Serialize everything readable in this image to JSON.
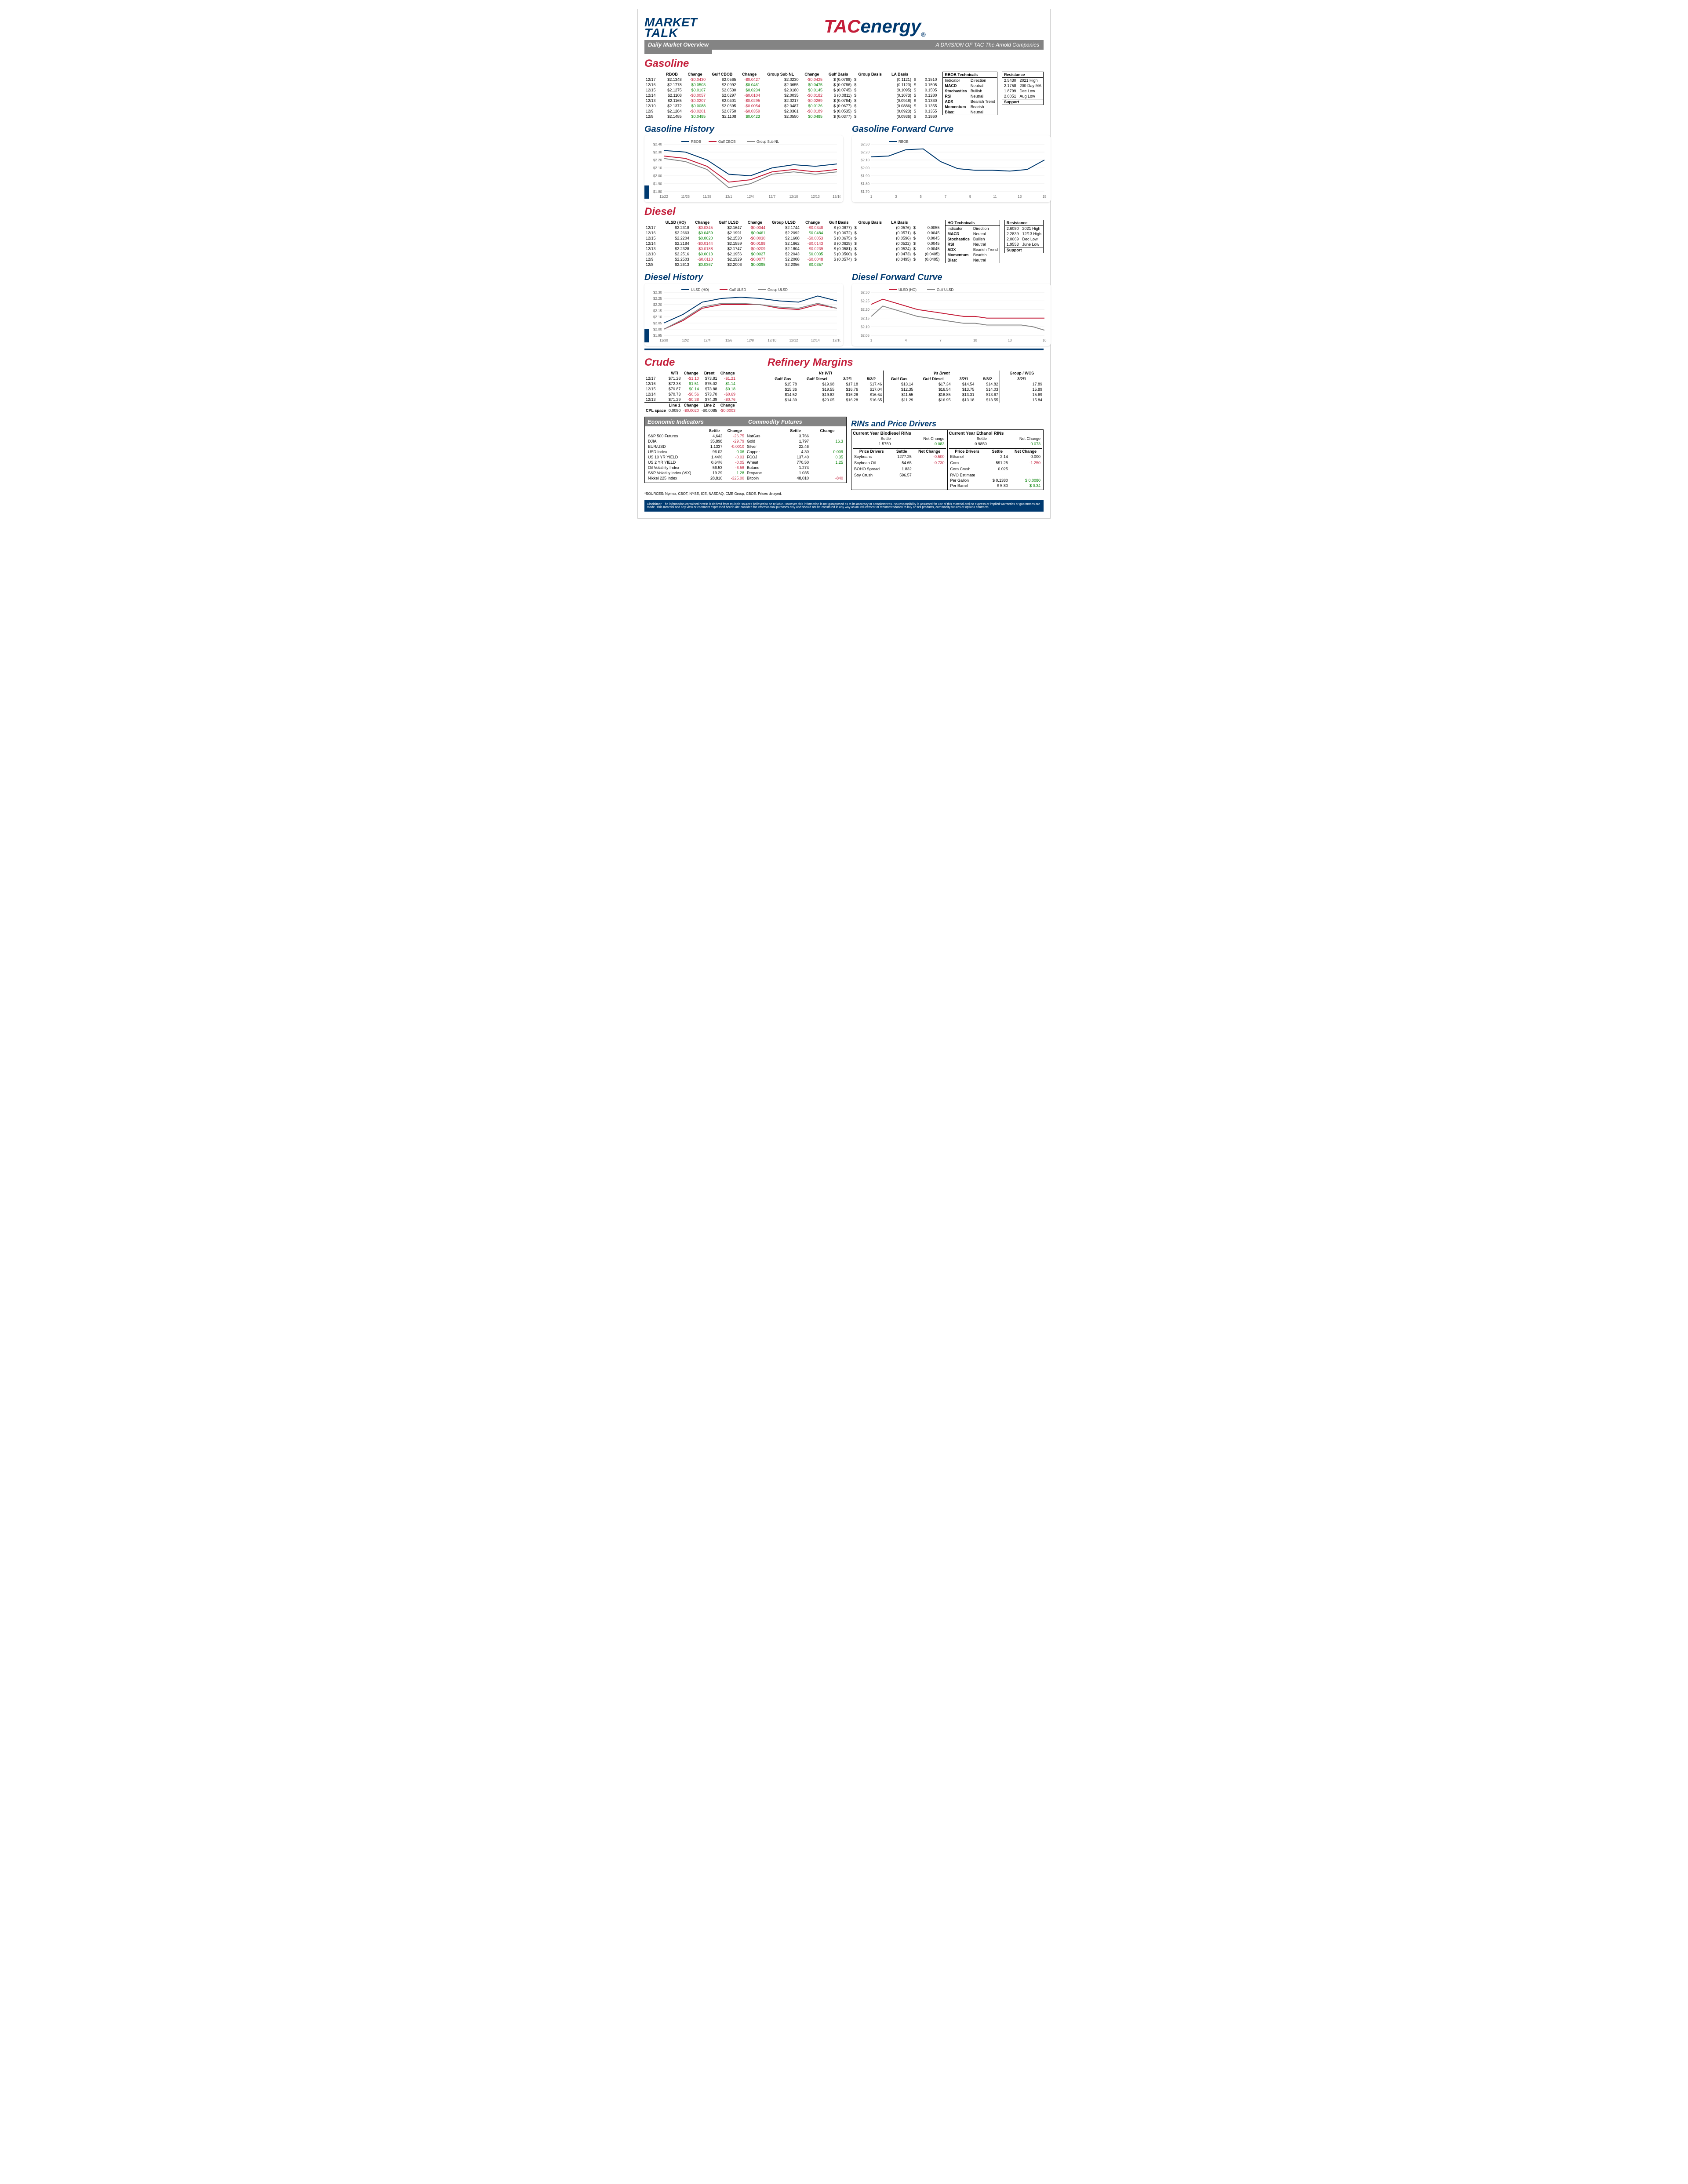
{
  "header": {
    "title1": "MARKET",
    "title2": "TALK",
    "subtitle": "Daily Market Overview",
    "brand_tac": "TAC",
    "brand_energy": "energy",
    "division": "A DIVISION OF TAC The Arnold Companies"
  },
  "gasoline": {
    "title": "Gasoline",
    "cols": [
      "",
      "RBOB",
      "Change",
      "Gulf CBOB",
      "Change",
      "Group Sub NL",
      "Change",
      "Gulf Basis",
      "Group Basis",
      "LA Basis"
    ],
    "rows": [
      [
        "12/17",
        "$2.1348",
        "-$0.0430",
        "$2.0565",
        "-$0.0427",
        "$2.0230",
        "-$0.0425",
        "$ (0.0788)",
        "$",
        "(0.1121)",
        "$",
        "0.1510"
      ],
      [
        "12/16",
        "$2.1778",
        "$0.0503",
        "$2.0992",
        "$0.0461",
        "$2.0655",
        "$0.0475",
        "$ (0.0786)",
        "$",
        "(0.1123)",
        "$",
        "0.1505"
      ],
      [
        "12/15",
        "$2.1275",
        "$0.0167",
        "$2.0530",
        "$0.0234",
        "$2.0180",
        "$0.0145",
        "$ (0.0745)",
        "$",
        "(0.1095)",
        "$",
        "0.1505"
      ],
      [
        "12/14",
        "$2.1108",
        "-$0.0057",
        "$2.0297",
        "-$0.0104",
        "$2.0035",
        "-$0.0182",
        "$ (0.0811)",
        "$",
        "(0.1073)",
        "$",
        "0.1280"
      ],
      [
        "12/13",
        "$2.1165",
        "-$0.0207",
        "$2.0401",
        "-$0.0295",
        "$2.0217",
        "-$0.0269",
        "$ (0.0764)",
        "$",
        "(0.0948)",
        "$",
        "0.1330"
      ],
      [
        "12/10",
        "$2.1372",
        "$0.0088",
        "$2.0695",
        "-$0.0054",
        "$2.0487",
        "$0.0126",
        "$ (0.0677)",
        "$",
        "(0.0886)",
        "$",
        "0.1355"
      ],
      [
        "12/9",
        "$2.1284",
        "-$0.0201",
        "$2.0750",
        "-$0.0359",
        "$2.0361",
        "-$0.0189",
        "$ (0.0535)",
        "$",
        "(0.0923)",
        "$",
        "0.1355"
      ],
      [
        "12/8",
        "$2.1485",
        "$0.0485",
        "$2.1108",
        "$0.0423",
        "$2.0550",
        "$0.0485",
        "$ (0.0377)",
        "$",
        "(0.0936)",
        "$",
        "0.1860"
      ]
    ],
    "tech": {
      "title": "RBOB Technicals",
      "h": [
        "Indicator",
        "Direction"
      ],
      "rows": [
        [
          "MACD",
          "Neutral"
        ],
        [
          "Stochastics",
          "Bullish"
        ],
        [
          "RSI",
          "Neutral"
        ],
        [
          "ADX",
          "Bearish Trend"
        ],
        [
          "Momentum",
          "Bearish"
        ],
        [
          "Bias:",
          "Neutral"
        ]
      ],
      "res": {
        "title": "Resistance",
        "rows": [
          [
            "2.5430",
            "2021 High"
          ],
          [
            "2.1758",
            "200 Day MA"
          ],
          [
            "1.8799",
            "Dec Low"
          ],
          [
            "2.0051",
            "Aug Low"
          ]
        ],
        "sup": "Support"
      }
    }
  },
  "gas_history": {
    "title": "Gasoline History",
    "legend": [
      "RBOB",
      "Gulf CBOB",
      "Group Sub NL"
    ],
    "x": [
      "11/22",
      "11/25",
      "11/28",
      "12/1",
      "12/4",
      "12/7",
      "12/10",
      "12/13",
      "12/16"
    ],
    "ylim": [
      1.8,
      2.4
    ],
    "yticks": [
      "$1.80",
      "$1.90",
      "$2.00",
      "$2.10",
      "$2.20",
      "$2.30",
      "$2.40"
    ],
    "series": {
      "rbob": {
        "color": "#003a70",
        "y": [
          2.32,
          2.3,
          2.2,
          2.02,
          2.0,
          2.1,
          2.14,
          2.12,
          2.15
        ]
      },
      "cbob": {
        "color": "#c41e3a",
        "y": [
          2.25,
          2.22,
          2.12,
          1.92,
          1.95,
          2.05,
          2.08,
          2.05,
          2.08
        ]
      },
      "group": {
        "color": "#888888",
        "y": [
          2.22,
          2.18,
          2.08,
          1.85,
          1.9,
          2.02,
          2.05,
          2.02,
          2.05
        ]
      }
    }
  },
  "gas_fwd": {
    "title": "Gasoline Forward Curve",
    "legend": [
      "RBOB"
    ],
    "x": [
      "1",
      "3",
      "5",
      "7",
      "9",
      "11",
      "13",
      "15"
    ],
    "ylim": [
      1.7,
      2.3
    ],
    "yticks": [
      "$1.70",
      "$1.80",
      "$1.90",
      "$2.00",
      "$2.10",
      "$2.20",
      "$2.30"
    ],
    "series": {
      "rbob": {
        "color": "#003a70",
        "y": [
          2.14,
          2.15,
          2.23,
          2.24,
          2.08,
          1.99,
          1.97,
          1.97,
          1.96,
          1.98,
          2.1
        ]
      }
    }
  },
  "diesel": {
    "title": "Diesel",
    "cols": [
      "",
      "ULSD (HO)",
      "Change",
      "Gulf ULSD",
      "Change",
      "Group ULSD",
      "Change",
      "Gulf Basis",
      "Group Basis",
      "LA Basis"
    ],
    "rows": [
      [
        "12/17",
        "$2.2318",
        "-$0.0345",
        "$2.1647",
        "-$0.0344",
        "$2.1744",
        "-$0.0348",
        "$ (0.0677)",
        "$",
        "(0.0576)",
        "$",
        "0.0055"
      ],
      [
        "12/16",
        "$2.2663",
        "$0.0459",
        "$2.1991",
        "$0.0461",
        "$2.2092",
        "$0.0484",
        "$ (0.0672)",
        "$",
        "(0.0571)",
        "$",
        "0.0045"
      ],
      [
        "12/15",
        "$2.2204",
        "$0.0020",
        "$2.1530",
        "-$0.0030",
        "$2.1608",
        "-$0.0053",
        "$ (0.0675)",
        "$",
        "(0.0596)",
        "$",
        "0.0045"
      ],
      [
        "12/14",
        "$2.2184",
        "-$0.0144",
        "$2.1559",
        "-$0.0188",
        "$2.1662",
        "-$0.0143",
        "$ (0.0625)",
        "$",
        "(0.0522)",
        "$",
        "0.0045"
      ],
      [
        "12/13",
        "$2.2328",
        "-$0.0188",
        "$2.1747",
        "-$0.0209",
        "$2.1804",
        "-$0.0239",
        "$ (0.0581)",
        "$",
        "(0.0524)",
        "$",
        "0.0045"
      ],
      [
        "12/10",
        "$2.2516",
        "$0.0013",
        "$2.1956",
        "$0.0027",
        "$2.2043",
        "$0.0035",
        "$ (0.0560)",
        "$",
        "(0.0473)",
        "$",
        "(0.0405)"
      ],
      [
        "12/9",
        "$2.2503",
        "-$0.0110",
        "$2.1929",
        "-$0.0077",
        "$2.2008",
        "-$0.0048",
        "$ (0.0574)",
        "$",
        "(0.0495)",
        "$",
        "(0.0405)"
      ],
      [
        "12/8",
        "$2.2613",
        "$0.0367",
        "$2.2006",
        "$0.0395",
        "$2.2056",
        "$0.0357",
        "",
        "",
        "",
        "",
        ""
      ]
    ],
    "tech": {
      "title": "HO Technicals",
      "h": [
        "Indicator",
        "Direction"
      ],
      "rows": [
        [
          "MACD",
          "Neutral"
        ],
        [
          "Stochastics",
          "Bullish"
        ],
        [
          "RSI",
          "Neutral"
        ],
        [
          "ADX",
          "Bearish Trend"
        ],
        [
          "Momentum",
          "Bearish"
        ],
        [
          "Bias:",
          "Neutral"
        ]
      ],
      "res": {
        "title": "Resistance",
        "rows": [
          [
            "2.6080",
            "2021 High"
          ],
          [
            "2.2839",
            "12/13 High"
          ],
          [
            "2.0069",
            "Dec Low"
          ],
          [
            "1.9553",
            "June Low"
          ]
        ],
        "sup": "Support"
      }
    }
  },
  "diesel_history": {
    "title": "Diesel History",
    "legend": [
      "ULSD (HO)",
      "Gulf ULSD",
      "Group ULSD"
    ],
    "x": [
      "11/30",
      "12/2",
      "12/4",
      "12/6",
      "12/8",
      "12/10",
      "12/12",
      "12/14",
      "12/16"
    ],
    "ylim": [
      1.95,
      2.3
    ],
    "yticks": [
      "$1.95",
      "$2.00",
      "$2.05",
      "$2.10",
      "$2.15",
      "$2.20",
      "$2.25",
      "$2.30"
    ],
    "series": {
      "ulsd": {
        "color": "#003a70",
        "y": [
          2.05,
          2.12,
          2.22,
          2.25,
          2.26,
          2.25,
          2.23,
          2.22,
          2.27,
          2.23
        ]
      },
      "gulf": {
        "color": "#c41e3a",
        "y": [
          2.0,
          2.07,
          2.17,
          2.2,
          2.2,
          2.2,
          2.17,
          2.16,
          2.2,
          2.17
        ]
      },
      "group": {
        "color": "#888888",
        "y": [
          2.0,
          2.08,
          2.18,
          2.21,
          2.21,
          2.2,
          2.18,
          2.17,
          2.21,
          2.17
        ]
      }
    }
  },
  "diesel_fwd": {
    "title": "Diesel Forward Curve",
    "legend": [
      "ULSD (HO)",
      "Gulf ULSD"
    ],
    "x": [
      "1",
      "4",
      "7",
      "10",
      "13",
      "16"
    ],
    "ylim": [
      2.05,
      2.3
    ],
    "yticks": [
      "$2.05",
      "$2.10",
      "$2.15",
      "$2.20",
      "$2.25",
      "$2.30"
    ],
    "series": {
      "ulsd": {
        "color": "#c41e3a",
        "y": [
          2.23,
          2.26,
          2.24,
          2.22,
          2.2,
          2.19,
          2.18,
          2.17,
          2.16,
          2.16,
          2.15,
          2.15,
          2.15,
          2.15,
          2.15,
          2.15
        ]
      },
      "gulf": {
        "color": "#888888",
        "y": [
          2.16,
          2.22,
          2.2,
          2.18,
          2.16,
          2.15,
          2.14,
          2.13,
          2.12,
          2.12,
          2.11,
          2.11,
          2.11,
          2.11,
          2.1,
          2.08
        ]
      }
    }
  },
  "crude": {
    "title": "Crude",
    "cols": [
      "",
      "WTI",
      "Change",
      "Brent",
      "Change"
    ],
    "rows": [
      [
        "12/17",
        "$71.28",
        "-$1.10",
        "$73.81",
        "-$1.21"
      ],
      [
        "12/16",
        "$72.38",
        "$1.51",
        "$75.02",
        "$1.14"
      ],
      [
        "12/15",
        "$70.87",
        "$0.14",
        "$73.88",
        "$0.18"
      ],
      [
        "12/14",
        "$70.73",
        "-$0.56",
        "$73.70",
        "-$0.69"
      ],
      [
        "12/13",
        "$71.29",
        "-$0.38",
        "$74.39",
        "-$0.76"
      ]
    ],
    "cpl": {
      "label": "CPL space",
      "cols": [
        "Line 1",
        "Change",
        "Line 2",
        "Change"
      ],
      "vals": [
        "0.0080",
        "-$0.0020",
        "-$0.0085",
        "-$0.0003"
      ]
    }
  },
  "margins": {
    "title": "Refinery Margins",
    "h1": [
      "Vs WTI",
      "Vs Brent",
      "Group / WCS"
    ],
    "cols": [
      "Gulf Gas",
      "Gulf Diesel",
      "3/2/1",
      "5/3/2",
      "Gulf Gas",
      "Gulf Diesel",
      "3/2/1",
      "5/3/2",
      "3/2/1"
    ],
    "rows": [
      [
        "$15.78",
        "$19.98",
        "$17.18",
        "$17.46",
        "$13.14",
        "$17.34",
        "$14.54",
        "$14.82",
        "17.89"
      ],
      [
        "$15.36",
        "$19.55",
        "$16.76",
        "$17.04",
        "$12.35",
        "$16.54",
        "$13.75",
        "$14.03",
        "15.89"
      ],
      [
        "$14.52",
        "$19.82",
        "$16.28",
        "$16.64",
        "$11.55",
        "$16.85",
        "$13.31",
        "$13.67",
        "15.69"
      ],
      [
        "$14.39",
        "$20.05",
        "$16.28",
        "$16.65",
        "$11.29",
        "$16.95",
        "$13.18",
        "$13.55",
        "15.84"
      ]
    ]
  },
  "econ": {
    "title": "Economic Indicators",
    "cols": [
      "",
      "Settle",
      "Change"
    ],
    "rows": [
      [
        "S&P 500 Futures",
        "4,642",
        "-26.75"
      ],
      [
        "DJIA",
        "35,898",
        "-29.79"
      ],
      [
        "EUR/USD",
        "1.1337",
        "-0.0010"
      ],
      [
        "USD Index",
        "96.02",
        "0.06"
      ],
      [
        "US 10 YR YIELD",
        "1.44%",
        "-0.03"
      ],
      [
        "US 2 YR YIELD",
        "0.64%",
        "-0.05"
      ],
      [
        "Oil Volatility Index",
        "56.53",
        "-6.56"
      ],
      [
        "S&P Volatiliy Index (VIX)",
        "19.29",
        "1.28"
      ],
      [
        "Nikkei 225 Index",
        "28,810",
        "-325.00"
      ]
    ]
  },
  "comm": {
    "title": "Commodity Futures",
    "cols": [
      "",
      "Settle",
      "Change"
    ],
    "rows": [
      [
        "NatGas",
        "3.766",
        ""
      ],
      [
        "Gold",
        "1,797",
        "16.3"
      ],
      [
        "Silver",
        "22.46",
        ""
      ],
      [
        "Copper",
        "4.30",
        "0.009"
      ],
      [
        "FCOJ",
        "137.40",
        "0.35"
      ],
      [
        "Wheat",
        "770.50",
        "1.25"
      ],
      [
        "Butane",
        "1.274",
        ""
      ],
      [
        "Propane",
        "1.035",
        ""
      ],
      [
        "Bitcoin",
        "48,010",
        "-840"
      ]
    ]
  },
  "rins": {
    "title": "RINs and Price Drivers",
    "bio": {
      "title": "Current Year Biodiesel RINs",
      "settle": "1.5750",
      "chg": "0.083"
    },
    "eth": {
      "title": "Current Year Ethanol RINs",
      "settle": "0.9850",
      "chg": "0.073"
    },
    "drivers1": {
      "title": "Price Drivers",
      "cols": [
        "",
        "Settle",
        "Net Change"
      ],
      "rows": [
        [
          "Soybeans",
          "1277.25",
          "-0.500"
        ],
        [
          "",
          ""
        ],
        [
          "Soybean Oil",
          "54.65",
          "-0.730"
        ],
        [
          "",
          ""
        ],
        [
          "BOHO Spread",
          "1.832",
          ""
        ],
        [
          "",
          ""
        ],
        [
          "Soy Crush",
          "596.57",
          ""
        ]
      ]
    },
    "drivers2": {
      "title": "Price Drivers",
      "cols": [
        "",
        "Settle",
        "Net Change"
      ],
      "rows": [
        [
          "Ethanol",
          "2.14",
          "0.000"
        ],
        [
          "",
          ""
        ],
        [
          "Corn",
          "591.25",
          "-1.250"
        ],
        [
          "",
          ""
        ],
        [
          "Corn Crush",
          "0.025",
          ""
        ],
        [
          "",
          ""
        ],
        [
          "RVO Estimate",
          "",
          ""
        ],
        [
          "Per Gallon",
          "$   0.1380",
          "$       0.0080"
        ],
        [
          "Per Barrel",
          "$       5.80",
          "$          0.34"
        ]
      ]
    }
  },
  "sources": "*SOURCES: Nymex, CBOT, NYSE, ICE, NASDAQ, CME Group, CBOE.   Prices delayed.",
  "disclaimer": "Disclaimer: The information contained herein is derived from multiple sources believed to be reliable. However, this information is not guaranteed as to its accuracy or completeness. No responsibility is assumed for use of this material and no express or implied warranties or guarantees are made. This material and any view or comment expressed herein are provided for informational purposes only and should not be construed in any way as an inducement or recommendation to buy or sell products, commodity futures or options contracts."
}
